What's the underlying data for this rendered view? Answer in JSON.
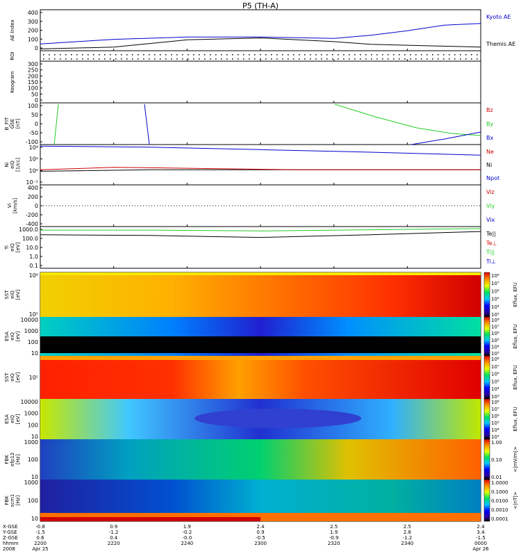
{
  "title": "P5 (TH-A)",
  "colors": {
    "axis": "#000000",
    "kyoto": "#0000cc",
    "red": "#cc0000",
    "green": "#22cc22",
    "blue": "#0000cc"
  },
  "xaxis": {
    "row_labels": [
      "X-GSE",
      "Y-GSE",
      "Z-GSE",
      "hhmm",
      "2008"
    ],
    "ticks": [
      {
        "x": "-0.8",
        "y": "-1.5",
        "z": "0.6",
        "t": "2200",
        "d": "Apr 25"
      },
      {
        "x": "0.9",
        "y": "-1.2",
        "z": "0.4",
        "t": "2220",
        "d": ""
      },
      {
        "x": "1.9",
        "y": "-0.2",
        "z": "-0.0",
        "t": "2240",
        "d": ""
      },
      {
        "x": "2.4",
        "y": "0.9",
        "z": "-0.5",
        "t": "2300",
        "d": ""
      },
      {
        "x": "2.5",
        "y": "1.9",
        "z": "-0.9",
        "t": "2320",
        "d": ""
      },
      {
        "x": "2.5",
        "y": "2.8",
        "z": "-1.2",
        "t": "2340",
        "d": ""
      },
      {
        "x": "2.4",
        "y": "3.4",
        "z": "-1.5",
        "t": "0000",
        "d": "Apr 26"
      }
    ]
  },
  "panels": [
    {
      "id": "ae",
      "ylabel": [
        "AE Index"
      ],
      "yticks": [
        "400",
        "300",
        "200",
        "100",
        "0"
      ],
      "legend": [
        {
          "t": "Kyoto AE",
          "c": "blue"
        },
        {
          "t": "Themis AE",
          "c": "axis"
        }
      ]
    },
    {
      "id": "roi",
      "ylabel": [
        "ROI"
      ],
      "yticks": [],
      "legend": []
    },
    {
      "id": "keo",
      "ylabel": [
        "Keogram"
      ],
      "yticks": [
        "300",
        "250",
        "200",
        "150",
        "100",
        "50",
        "0"
      ],
      "legend": []
    },
    {
      "id": "bfit",
      "ylabel": [
        "B_FIT",
        "GSE",
        "[nT]"
      ],
      "yticks": [
        "100",
        "50",
        "0",
        "-50",
        "-100"
      ],
      "legend": [
        {
          "t": "Bz",
          "c": "red"
        },
        {
          "t": "By",
          "c": "green"
        },
        {
          "t": "Bx",
          "c": "blue"
        }
      ]
    },
    {
      "id": "ni",
      "ylabel": [
        "Ni",
        "eiQ",
        "[1/cc]"
      ],
      "yticks": [
        "10⁴",
        "10²",
        "10⁰",
        "10⁻²"
      ],
      "legend": [
        {
          "t": "Ne",
          "c": "red"
        },
        {
          "t": "Ni",
          "c": "axis"
        },
        {
          "t": "Npot",
          "c": "blue"
        }
      ]
    },
    {
      "id": "vi",
      "ylabel": [
        "Vi",
        "[km/s]"
      ],
      "yticks": [
        "400",
        "200",
        "0",
        "-200",
        "-400"
      ],
      "legend": [
        {
          "t": "Viz",
          "c": "red"
        },
        {
          "t": "Viy",
          "c": "green"
        },
        {
          "t": "Vix",
          "c": "blue"
        }
      ]
    },
    {
      "id": "ti",
      "ylabel": [
        "Ti",
        "eiQ",
        "[eV]"
      ],
      "yticks": [
        "1000.0",
        "100.0",
        "10.0",
        "1.0",
        "0.1"
      ],
      "legend": [
        {
          "t": "Te||",
          "c": "axis"
        },
        {
          "t": "Te⊥",
          "c": "red"
        },
        {
          "t": "Ti||",
          "c": "green"
        },
        {
          "t": "Ti⊥",
          "c": "blue"
        }
      ]
    },
    {
      "id": "sst1",
      "ylabel": [
        "SST",
        "eiQ",
        "[eV]"
      ],
      "yticks": [
        "10⁶",
        "10⁵"
      ],
      "legend": []
    },
    {
      "id": "esa1",
      "ylabel": [
        "ESA",
        "eiQ",
        "[eV]"
      ],
      "yticks": [
        "10000",
        "1000",
        "100",
        "10"
      ],
      "legend": []
    },
    {
      "id": "sst2",
      "ylabel": [
        "SST",
        "eiQ",
        "[eV]"
      ],
      "yticks": [
        "10⁵"
      ],
      "legend": []
    },
    {
      "id": "esa2",
      "ylabel": [
        "ESA",
        "eiQ",
        "[eV]"
      ],
      "yticks": [
        "10000",
        "1000",
        "100",
        "10"
      ],
      "legend": []
    },
    {
      "id": "fbk1",
      "ylabel": [
        "FBK",
        "efp12",
        "[Hz]"
      ],
      "yticks": [
        "1000",
        "100",
        "10"
      ],
      "legend": []
    },
    {
      "id": "fbk2",
      "ylabel": [
        "FBK",
        "scm1",
        "[Hz]"
      ],
      "yticks": [
        "1000",
        "100",
        "10"
      ],
      "legend": []
    }
  ],
  "colorbars": [
    {
      "id": "cb1",
      "label": "Eflux, EFU",
      "ticks": [
        "10⁸",
        "10⁷",
        "10⁶",
        "10⁵",
        "10⁴",
        "10³"
      ]
    },
    {
      "id": "cb2",
      "label": "Eflux, EFU",
      "ticks": [
        "10⁸",
        "10⁷",
        "10⁶",
        "10⁵",
        "10⁴",
        "10³"
      ]
    },
    {
      "id": "cb3",
      "label": "Eflux, EFU",
      "ticks": [
        "10⁸",
        "10⁷",
        "10⁶",
        "10⁵",
        "10⁴",
        "10³"
      ]
    },
    {
      "id": "cb4",
      "label": "Eflux, EFU",
      "ticks": [
        "10⁸",
        "10⁷",
        "10⁶",
        "10⁵",
        "10⁴",
        "10³"
      ]
    },
    {
      "id": "cb5",
      "label": "<|mV/m|>",
      "ticks": [
        "1.00",
        "0.10",
        "0.01"
      ]
    },
    {
      "id": "cb6",
      "label": "<|nT|>",
      "ticks": [
        "1.0000",
        "0.1000",
        "0.0100",
        "0.0010",
        "0.0001"
      ]
    }
  ],
  "chart_data": {
    "type": "line",
    "title": "P5 (TH-A)",
    "time_range": [
      "2200 Apr 25 2008",
      "0000 Apr 26"
    ],
    "time_ticks": [
      "2200",
      "2220",
      "2240",
      "2300",
      "2320",
      "2340",
      "0000"
    ],
    "series": [
      {
        "name": "Kyoto AE",
        "panel": "ae",
        "t": [
          0,
          10,
          20,
          40,
          60,
          80,
          90,
          100,
          110,
          120
        ],
        "values": [
          75,
          100,
          125,
          150,
          150,
          135,
          170,
          220,
          280,
          300
        ]
      },
      {
        "name": "Themis AE",
        "panel": "ae",
        "t": [
          0,
          20,
          40,
          60,
          80,
          90,
          100,
          110,
          120
        ],
        "values": [
          20,
          40,
          120,
          140,
          100,
          70,
          60,
          50,
          40
        ]
      },
      {
        "name": "Ni",
        "panel": "ni",
        "t": [
          0,
          30,
          60,
          90,
          120
        ],
        "values": [
          0.5,
          1,
          1,
          1,
          1
        ]
      },
      {
        "name": "Ne",
        "panel": "ni",
        "t": [
          0,
          20,
          40,
          70,
          100,
          120
        ],
        "values": [
          1,
          3,
          2,
          1,
          1,
          1
        ]
      },
      {
        "name": "Npot",
        "panel": "ni",
        "t": [
          0,
          30,
          60,
          90,
          120
        ],
        "values": [
          50000,
          30000,
          10000,
          3000,
          800
        ]
      },
      {
        "name": "Ti||",
        "panel": "ti",
        "t": [
          0,
          30,
          60,
          90,
          120
        ],
        "values": [
          1000,
          1000,
          800,
          1100,
          1500
        ]
      },
      {
        "name": "Te||",
        "panel": "ti",
        "t": [
          0,
          30,
          60,
          90,
          120
        ],
        "values": [
          300,
          250,
          150,
          300,
          700
        ]
      }
    ]
  }
}
